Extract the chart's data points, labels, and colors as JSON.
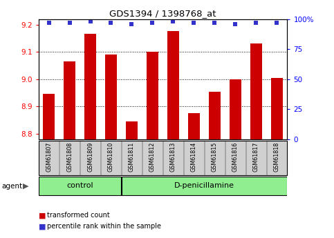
{
  "title": "GDS1394 / 1398768_at",
  "categories": [
    "GSM61807",
    "GSM61808",
    "GSM61809",
    "GSM61810",
    "GSM61811",
    "GSM61812",
    "GSM61813",
    "GSM61814",
    "GSM61815",
    "GSM61816",
    "GSM61817",
    "GSM61818"
  ],
  "bar_values": [
    8.945,
    9.065,
    9.165,
    9.09,
    8.845,
    9.1,
    9.175,
    8.875,
    8.955,
    9.0,
    9.13,
    9.005
  ],
  "percentile_values": [
    97,
    97,
    98,
    97,
    96,
    97,
    98,
    97,
    97,
    96,
    97,
    97
  ],
  "bar_color": "#cc0000",
  "percentile_color": "#3333cc",
  "ylim_left": [
    8.78,
    9.22
  ],
  "ylim_right": [
    0,
    100
  ],
  "yticks_left": [
    8.8,
    8.9,
    9.0,
    9.1,
    9.2
  ],
  "yticks_right": [
    0,
    25,
    50,
    75,
    100
  ],
  "ytick_labels_right": [
    "0",
    "25",
    "50",
    "75",
    "100%"
  ],
  "gridlines": [
    8.9,
    9.0,
    9.1
  ],
  "ctrl_count": 4,
  "treat_count": 8,
  "control_label": "control",
  "treatment_label": "D-penicillamine",
  "agent_label": "agent",
  "legend_bar_label": "transformed count",
  "legend_pct_label": "percentile rank within the sample",
  "green_color": "#90ee90",
  "sample_box_color": "#d0d0d0",
  "background_color": "#ffffff"
}
